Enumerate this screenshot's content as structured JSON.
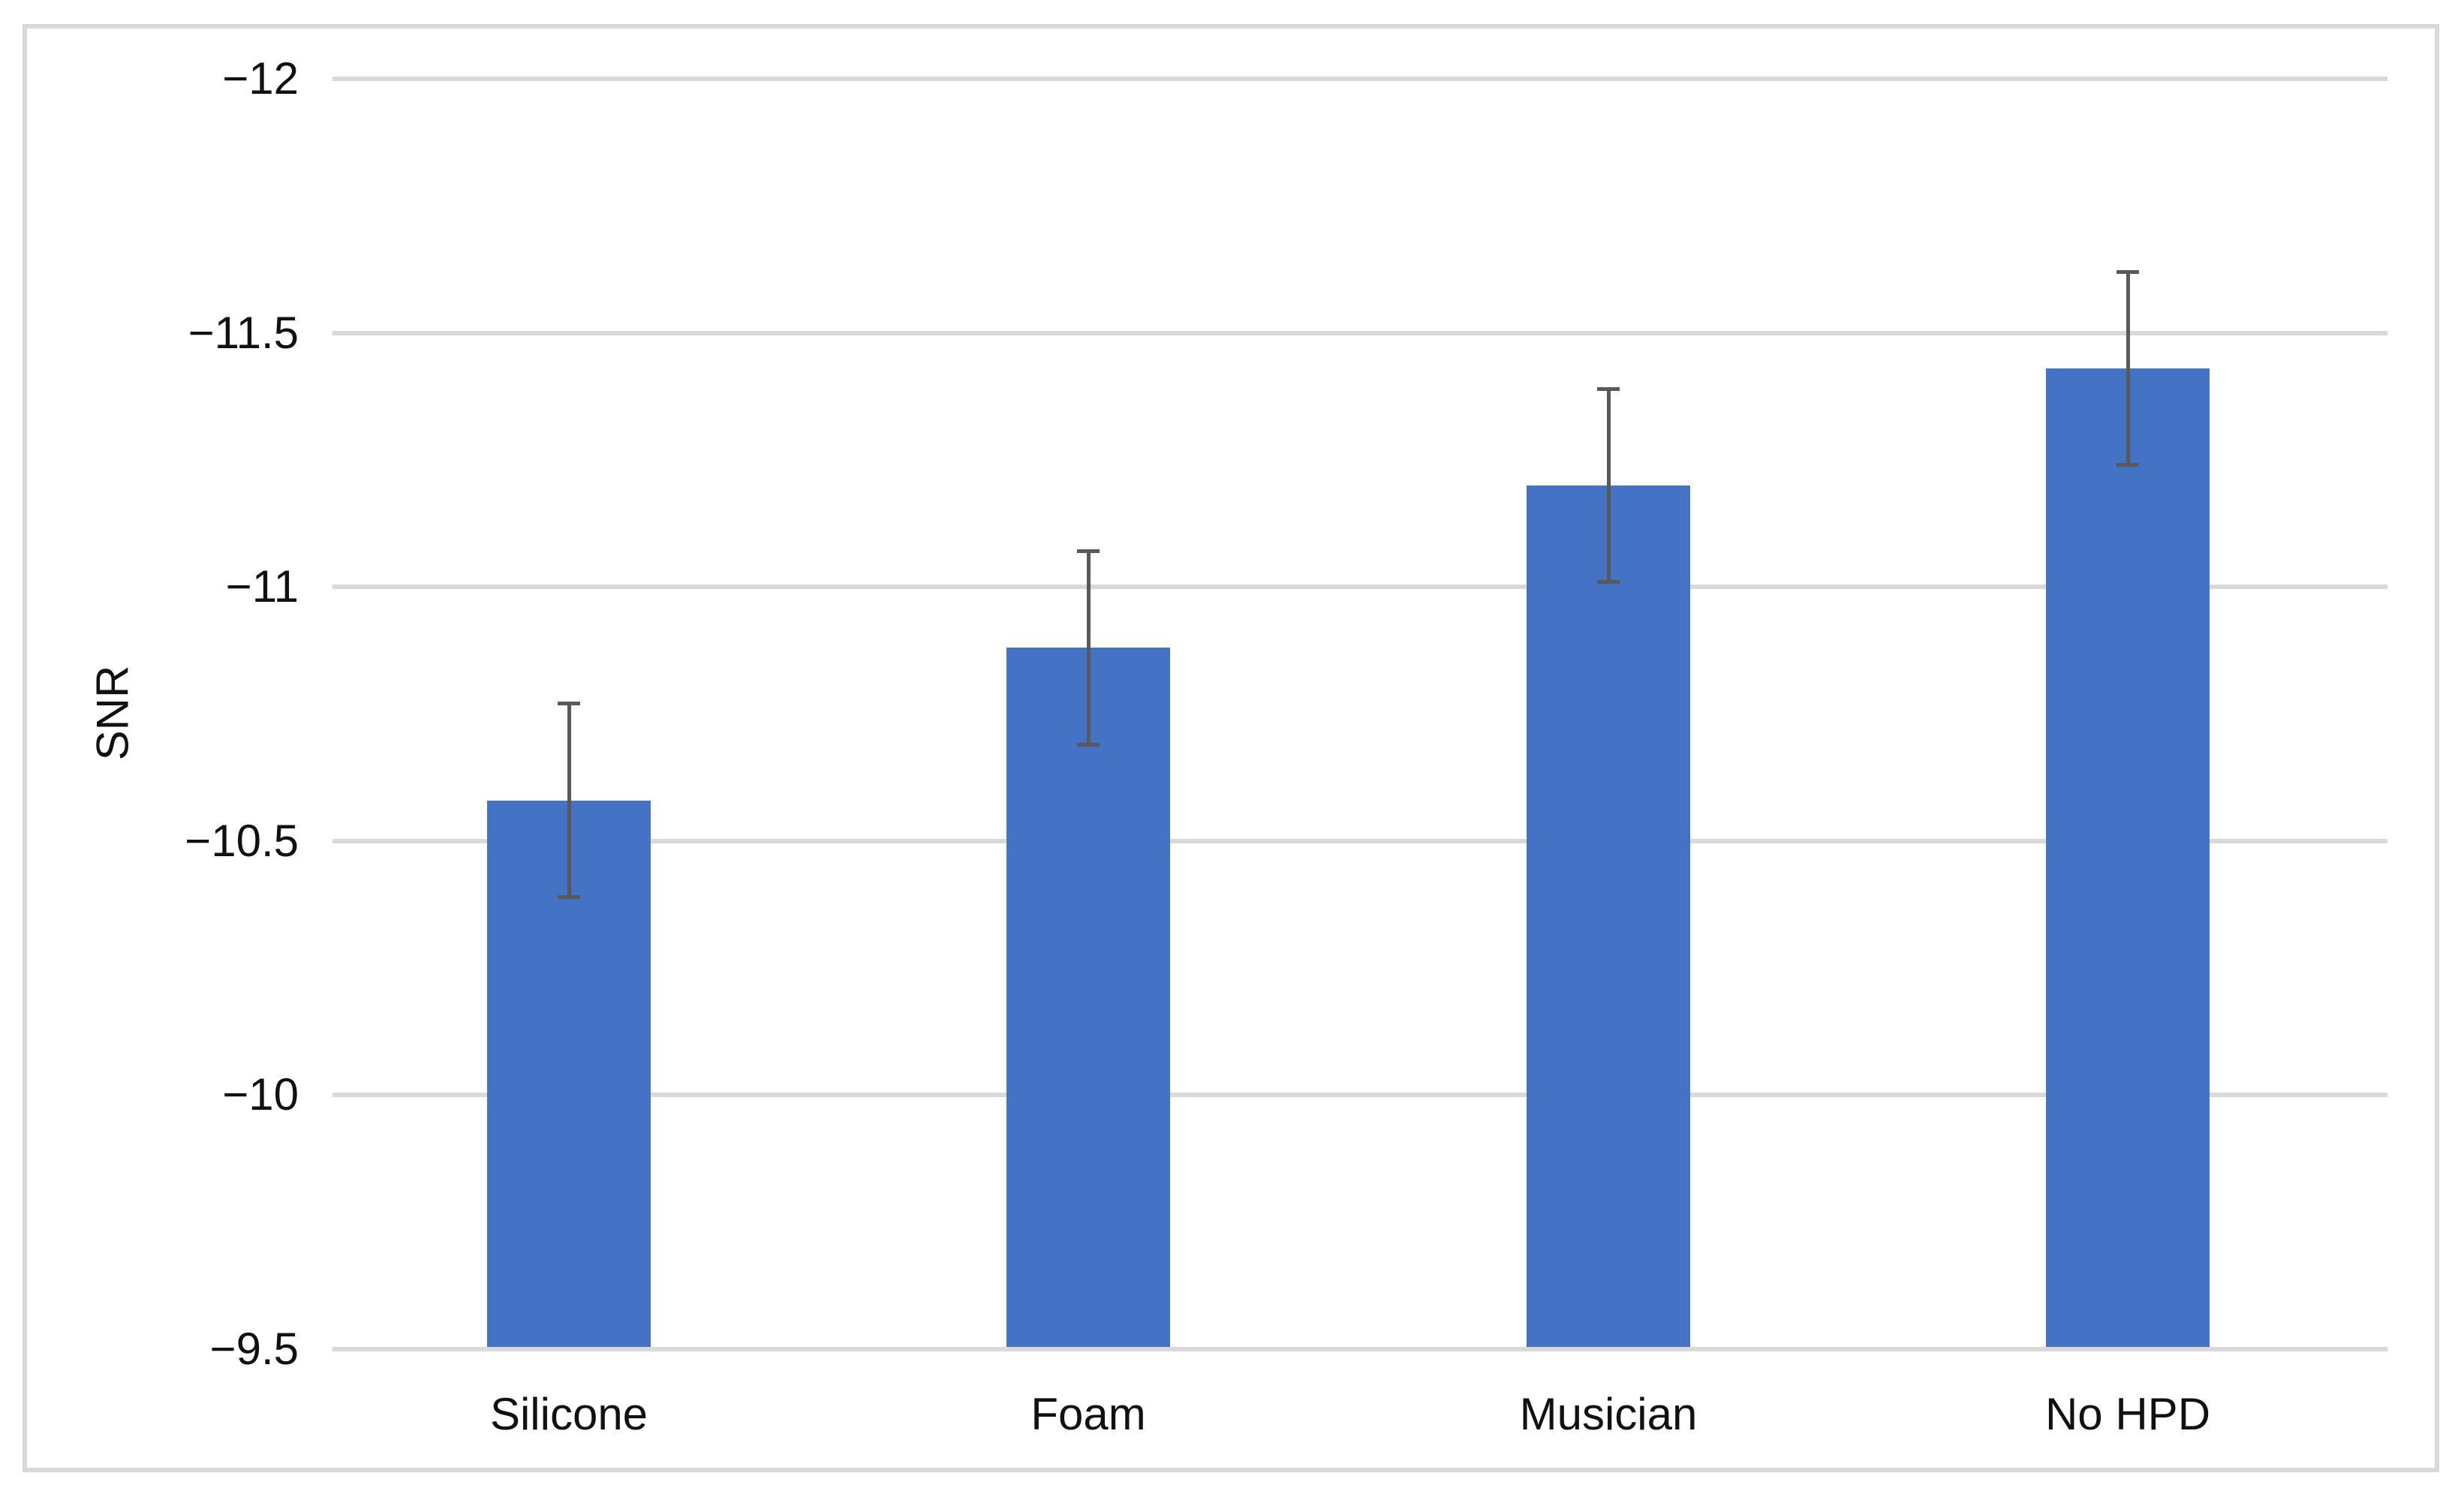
{
  "figure": {
    "background_color": "#FFFFFF",
    "border_color": "#D9D9D9"
  },
  "chart_data": {
    "type": "bar",
    "title": "",
    "xlabel": "",
    "ylabel": "SNR",
    "categories": [
      "Silicone",
      "Foam",
      "Musician",
      "No HPD"
    ],
    "series": [
      {
        "name": "SNR",
        "values": [
          -10.58,
          -10.88,
          -11.2,
          -11.43
        ],
        "error_bars": [
          0.19,
          0.19,
          0.19,
          0.19
        ]
      }
    ],
    "y_axis": {
      "min": -9.5,
      "max": -12,
      "reversed": true,
      "tick_step": 0.5,
      "tick_values": [
        -12,
        -11.5,
        -11,
        -10.5,
        -10,
        -9.5
      ],
      "tick_labels": [
        "−12",
        "−11.5",
        "−11",
        "−10.5",
        "−10",
        "−9.5"
      ]
    },
    "grid": true,
    "legend": false,
    "bar_color": "#4472C4",
    "error_bar_color": "#595959",
    "gridline_color": "#D9D9D9",
    "tick_label_color": "#111111"
  }
}
